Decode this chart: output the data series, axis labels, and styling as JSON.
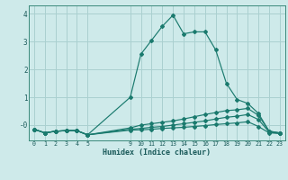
{
  "xlabel": "Humidex (Indice chaleur)",
  "xlim": [
    -0.5,
    23.5
  ],
  "ylim": [
    -0.55,
    4.3
  ],
  "background_color": "#ceeaea",
  "grid_color": "#aad0d0",
  "line_color": "#1a7a6e",
  "lines": [
    {
      "x": [
        0,
        1,
        2,
        3,
        4,
        5,
        9,
        10,
        11,
        12,
        13,
        14,
        15,
        16,
        17,
        18,
        19,
        20,
        21,
        22,
        23
      ],
      "y": [
        -0.15,
        -0.28,
        -0.22,
        -0.2,
        -0.2,
        -0.35,
        1.0,
        2.55,
        3.05,
        3.55,
        3.95,
        3.28,
        3.35,
        3.35,
        2.7,
        1.5,
        0.92,
        0.78,
        0.42,
        -0.22,
        -0.28
      ]
    },
    {
      "x": [
        0,
        1,
        2,
        3,
        4,
        5,
        9,
        10,
        11,
        12,
        13,
        14,
        15,
        16,
        17,
        18,
        19,
        20,
        21,
        22,
        23
      ],
      "y": [
        -0.15,
        -0.28,
        -0.22,
        -0.2,
        -0.2,
        -0.35,
        -0.1,
        0.0,
        0.05,
        0.1,
        0.15,
        0.22,
        0.3,
        0.38,
        0.45,
        0.52,
        0.55,
        0.6,
        0.35,
        -0.22,
        -0.28
      ]
    },
    {
      "x": [
        0,
        1,
        2,
        3,
        4,
        5,
        9,
        10,
        11,
        12,
        13,
        14,
        15,
        16,
        17,
        18,
        19,
        20,
        21,
        22,
        23
      ],
      "y": [
        -0.15,
        -0.28,
        -0.22,
        -0.2,
        -0.2,
        -0.35,
        -0.15,
        -0.12,
        -0.08,
        -0.05,
        0.0,
        0.05,
        0.1,
        0.15,
        0.22,
        0.28,
        0.32,
        0.38,
        0.2,
        -0.25,
        -0.3
      ]
    },
    {
      "x": [
        0,
        1,
        2,
        3,
        4,
        5,
        9,
        10,
        11,
        12,
        13,
        14,
        15,
        16,
        17,
        18,
        19,
        20,
        21,
        22,
        23
      ],
      "y": [
        -0.15,
        -0.28,
        -0.22,
        -0.2,
        -0.2,
        -0.35,
        -0.18,
        -0.17,
        -0.15,
        -0.12,
        -0.1,
        -0.08,
        -0.05,
        -0.02,
        0.02,
        0.05,
        0.08,
        0.12,
        -0.05,
        -0.28,
        -0.3
      ]
    }
  ],
  "xtick_positions": [
    0,
    1,
    2,
    3,
    4,
    5,
    9,
    10,
    11,
    12,
    13,
    14,
    15,
    16,
    17,
    18,
    19,
    20,
    21,
    22,
    23
  ],
  "ytick_positions": [
    0,
    1,
    2,
    3,
    4
  ],
  "ytick_labels": [
    "-0",
    "1",
    "2",
    "3",
    "4"
  ]
}
